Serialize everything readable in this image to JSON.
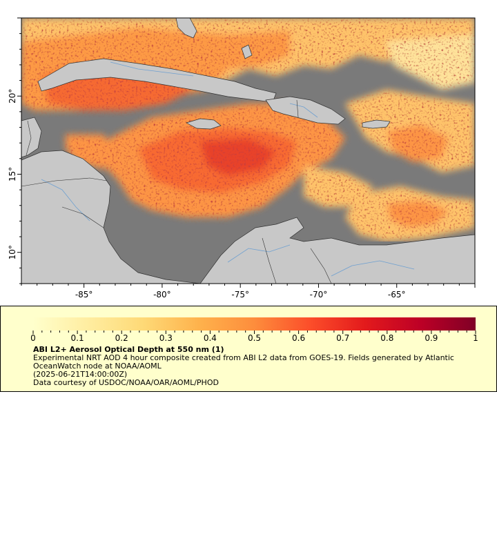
{
  "map": {
    "y_ticks": [
      {
        "label": "20°",
        "value": 20
      },
      {
        "label": "15°",
        "value": 15
      },
      {
        "label": "10°",
        "value": 10
      }
    ],
    "x_ticks": [
      {
        "label": "-85°",
        "value": -85
      },
      {
        "label": "-80°",
        "value": -80
      },
      {
        "label": "-75°",
        "value": -75
      },
      {
        "label": "-70°",
        "value": -70
      },
      {
        "label": "-65°",
        "value": -65
      }
    ],
    "extent": {
      "lon_min": -89,
      "lon_max": -60,
      "lat_min": 8,
      "lat_max": 25
    },
    "colors": {
      "ocean_nodata": "#7a7a7a",
      "land": "#c8c8c8",
      "coast_border": "#303030",
      "rivers": "#6fa0d0"
    }
  },
  "colorbar": {
    "min": 0,
    "max": 1,
    "tick_labels": [
      "0",
      "0.1",
      "0.2",
      "0.3",
      "0.4",
      "0.5",
      "0.6",
      "0.7",
      "0.8",
      "0.9",
      "1"
    ],
    "colors": [
      "#ffffcc",
      "#ffeda0",
      "#fed976",
      "#feb24c",
      "#fd8d3c",
      "#fc4e2a",
      "#e31a1c",
      "#bd0026",
      "#800026"
    ]
  },
  "legend": {
    "title": "ABI L2+ Aerosol Optical Depth at 550 nm (1)",
    "line1": "Experimental NRT AOD 4 hour composite created from ABI L2 data from GOES-19. Fields generated by Atlantic OceanWatch node at NOAA/AOML",
    "line2": "(2025-06-21T14:00:00Z)",
    "line3": "Data courtesy of USDOC/NOAA/OAR/AOML/PHOD"
  }
}
